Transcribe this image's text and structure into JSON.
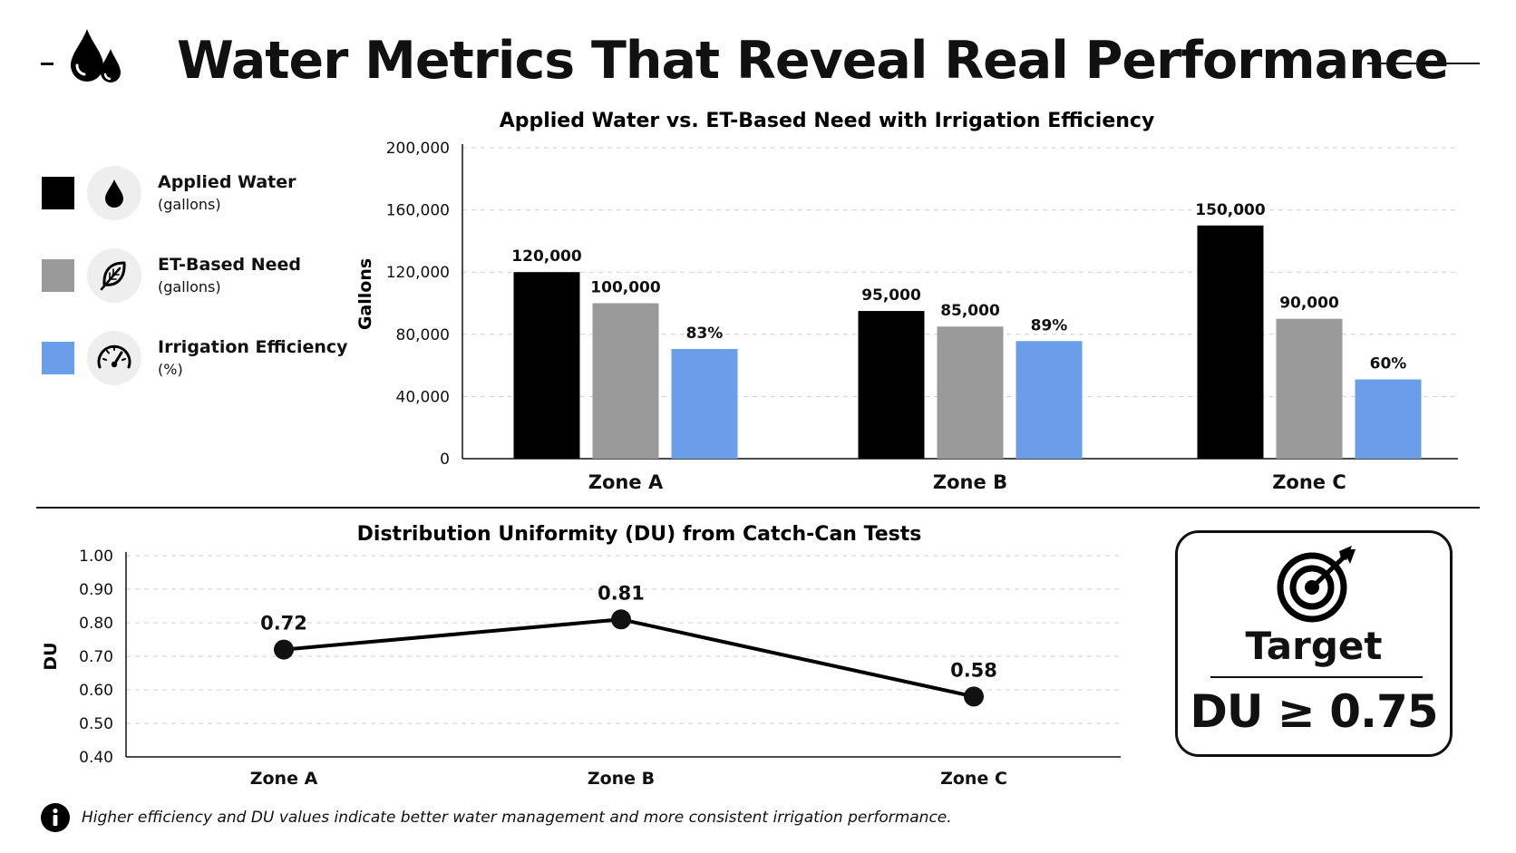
{
  "header": {
    "title": "Water Metrics That Reveal Real Performance",
    "icon": "water-drops-icon"
  },
  "legend": [
    {
      "name": "Applied Water",
      "unit": "(gallons)",
      "color": "#000000",
      "icon": "water-drop-icon"
    },
    {
      "name": "ET-Based Need",
      "unit": "(gallons)",
      "color": "#9a9a9a",
      "icon": "leaf-icon"
    },
    {
      "name": "Irrigation Efficiency",
      "unit": "(%)",
      "color": "#6a9ee8",
      "icon": "gauge-icon"
    }
  ],
  "chart_data": [
    {
      "type": "bar",
      "title": "Applied Water vs. ET-Based Need with Irrigation Efficiency",
      "ylabel": "Gallons",
      "xlabel": "",
      "ylim": [
        0,
        200000
      ],
      "yticks": [
        "0",
        "40,000",
        "80,000",
        "120,000",
        "160,000",
        "200,000"
      ],
      "ytick_values": [
        0,
        40000,
        80000,
        120000,
        160000,
        200000
      ],
      "grid": true,
      "categories": [
        "Zone A",
        "Zone B",
        "Zone C"
      ],
      "series": [
        {
          "name": "Applied Water",
          "color": "#000000",
          "values": [
            120000,
            95000,
            150000
          ],
          "labels": [
            "120,000",
            "95,000",
            "150,000"
          ]
        },
        {
          "name": "ET-Based Need",
          "color": "#9a9a9a",
          "values": [
            100000,
            85000,
            90000
          ],
          "labels": [
            "100,000",
            "85,000",
            "90,000"
          ]
        },
        {
          "name": "Irrigation Efficiency",
          "color": "#6a9ee8",
          "values": [
            83,
            89,
            60
          ],
          "labels": [
            "83%",
            "89%",
            "60%"
          ],
          "unit": "%"
        }
      ]
    },
    {
      "type": "line",
      "title": "Distribution Uniformity (DU) from Catch-Can Tests",
      "ylabel": "DU",
      "xlabel": "",
      "ylim": [
        0.4,
        1.0
      ],
      "yticks": [
        "0.40",
        "0.50",
        "0.60",
        "0.70",
        "0.80",
        "0.90",
        "1.00"
      ],
      "ytick_values": [
        0.4,
        0.5,
        0.6,
        0.7,
        0.8,
        0.9,
        1.0
      ],
      "grid": true,
      "categories": [
        "Zone A",
        "Zone B",
        "Zone C"
      ],
      "series": [
        {
          "values": [
            0.72,
            0.81,
            0.58
          ],
          "labels": [
            "0.72",
            "0.81",
            "0.58"
          ],
          "color": "#000000"
        }
      ]
    }
  ],
  "target": {
    "label": "Target",
    "value": "DU ≥ 0.75",
    "icon": "target-icon"
  },
  "footnote": {
    "icon": "info-icon",
    "text": "Higher efficiency and DU values indicate better water management and more consistent irrigation performance."
  }
}
